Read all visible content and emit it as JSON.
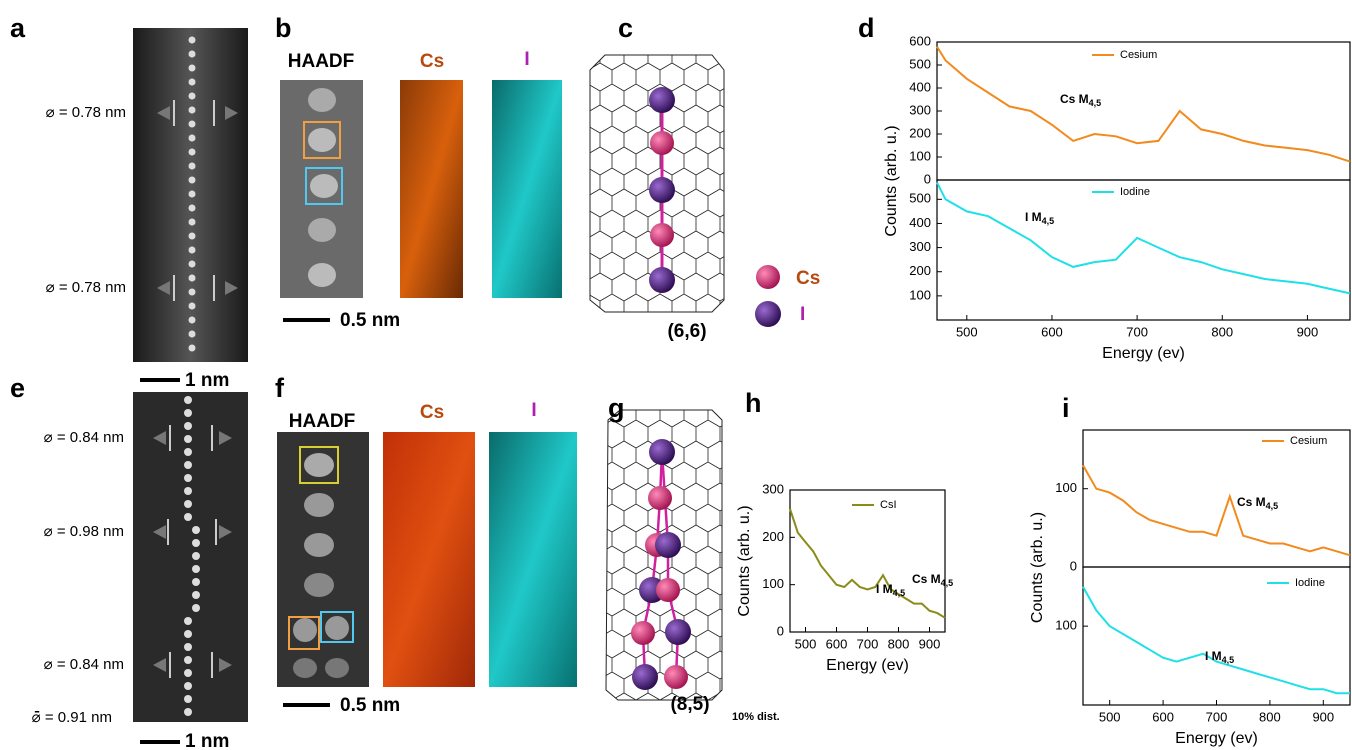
{
  "panels": {
    "a": {
      "letter": "a",
      "diameters": [
        "⌀ = 0.78 nm",
        "⌀ = 0.78 nm"
      ],
      "scale": "1 nm"
    },
    "b": {
      "letter": "b",
      "haadf": "HAADF",
      "cs": "Cs",
      "i": "I",
      "scale": "0.5 nm"
    },
    "c": {
      "letter": "c",
      "chirality": "(6,6)",
      "legend_cs": "Cs",
      "legend_i": "I"
    },
    "d": {
      "letter": "d"
    },
    "e": {
      "letter": "e",
      "diameters": [
        "⌀ = 0.84 nm",
        "⌀ = 0.98 nm",
        "⌀ = 0.84 nm"
      ],
      "mean": "⌀̄ = 0.91 nm",
      "scale": "1 nm"
    },
    "f": {
      "letter": "f",
      "haadf": "HAADF",
      "cs": "Cs",
      "i": "I",
      "scale": "0.5 nm"
    },
    "g": {
      "letter": "g",
      "chirality": "(8,5)",
      "note": "10% dist."
    },
    "h": {
      "letter": "h"
    },
    "i": {
      "letter": "i"
    }
  },
  "chart_data": [
    {
      "type": "line",
      "x": [
        465,
        475,
        500,
        525,
        550,
        575,
        600,
        625,
        650,
        675,
        700,
        725,
        750,
        775,
        800,
        825,
        850,
        875,
        900,
        925,
        950
      ],
      "series": [
        {
          "name": "Cesium",
          "color": "#f28a1e",
          "values": [
            580,
            520,
            440,
            380,
            320,
            300,
            240,
            170,
            200,
            190,
            160,
            170,
            300,
            220,
            200,
            170,
            150,
            140,
            130,
            110,
            80
          ]
        }
      ],
      "xlim": [
        465,
        950
      ],
      "ylim": [
        0,
        600
      ],
      "yticks": [
        0,
        100,
        200,
        300,
        400,
        500,
        600
      ],
      "annotations": [
        {
          "text": "Cs M",
          "sub": "4,5"
        }
      ]
    },
    {
      "type": "line",
      "x": [
        465,
        475,
        500,
        525,
        550,
        575,
        600,
        625,
        650,
        675,
        700,
        725,
        750,
        775,
        800,
        825,
        850,
        875,
        900,
        925,
        950
      ],
      "series": [
        {
          "name": "Iodine",
          "color": "#1ee0e8",
          "values": [
            570,
            500,
            450,
            430,
            380,
            330,
            260,
            220,
            240,
            250,
            340,
            300,
            260,
            240,
            210,
            190,
            170,
            160,
            150,
            130,
            110
          ]
        }
      ],
      "xlim": [
        465,
        950
      ],
      "ylim": [
        0,
        580
      ],
      "yticks": [
        100,
        200,
        300,
        400,
        500
      ],
      "xticks": [
        500,
        600,
        700,
        800,
        900
      ],
      "x_label": "Energy (ev)",
      "y_label": "Counts (arb. u.)",
      "annotations": [
        {
          "text": "I M",
          "sub": "4,5"
        }
      ]
    },
    {
      "type": "line",
      "x": [
        450,
        475,
        500,
        525,
        550,
        575,
        600,
        625,
        650,
        675,
        700,
        725,
        750,
        775,
        800,
        825,
        850,
        875,
        900,
        925,
        950
      ],
      "series": [
        {
          "name": "CsI",
          "color": "#8b8b1a",
          "values": [
            260,
            210,
            190,
            170,
            140,
            120,
            100,
            95,
            110,
            95,
            90,
            95,
            120,
            90,
            80,
            70,
            60,
            60,
            45,
            40,
            30
          ]
        }
      ],
      "xlim": [
        450,
        950
      ],
      "ylim": [
        0,
        300
      ],
      "yticks": [
        0,
        100,
        200,
        300
      ],
      "xticks": [
        500,
        600,
        700,
        800,
        900
      ],
      "x_label": "Energy (ev)",
      "y_label": "Counts (arb. u.)",
      "annotations": [
        {
          "text": "I M",
          "sub": "4,5"
        },
        {
          "text": "Cs M",
          "sub": "4,5"
        }
      ]
    },
    {
      "type": "line",
      "x": [
        450,
        475,
        500,
        525,
        550,
        575,
        600,
        625,
        650,
        675,
        700,
        725,
        750,
        775,
        800,
        825,
        850,
        875,
        900,
        925,
        950
      ],
      "series": [
        {
          "name": "Cesium",
          "color": "#f28a1e",
          "values": [
            130,
            100,
            95,
            85,
            70,
            60,
            55,
            50,
            45,
            45,
            40,
            90,
            40,
            35,
            30,
            30,
            25,
            20,
            25,
            20,
            15
          ]
        }
      ],
      "xlim": [
        450,
        950
      ],
      "ylim": [
        0,
        175
      ],
      "yticks": [
        0,
        100
      ],
      "annotations": [
        {
          "text": "Cs M",
          "sub": "4,5"
        }
      ]
    },
    {
      "type": "line",
      "x": [
        450,
        475,
        500,
        525,
        550,
        575,
        600,
        625,
        650,
        675,
        700,
        725,
        750,
        775,
        800,
        825,
        850,
        875,
        900,
        925,
        950
      ],
      "series": [
        {
          "name": "Iodine",
          "color": "#1ee0e8",
          "values": [
            150,
            120,
            100,
            90,
            80,
            70,
            60,
            55,
            60,
            65,
            55,
            50,
            45,
            40,
            35,
            30,
            25,
            20,
            20,
            15,
            15
          ]
        }
      ],
      "xlim": [
        450,
        950
      ],
      "ylim": [
        0,
        175
      ],
      "yticks": [
        100
      ],
      "xticks": [
        500,
        600,
        700,
        800,
        900
      ],
      "x_label": "Energy (ev)",
      "y_label": "Counts (arb. u.)",
      "annotations": [
        {
          "text": "I M",
          "sub": "4,5"
        }
      ]
    }
  ]
}
